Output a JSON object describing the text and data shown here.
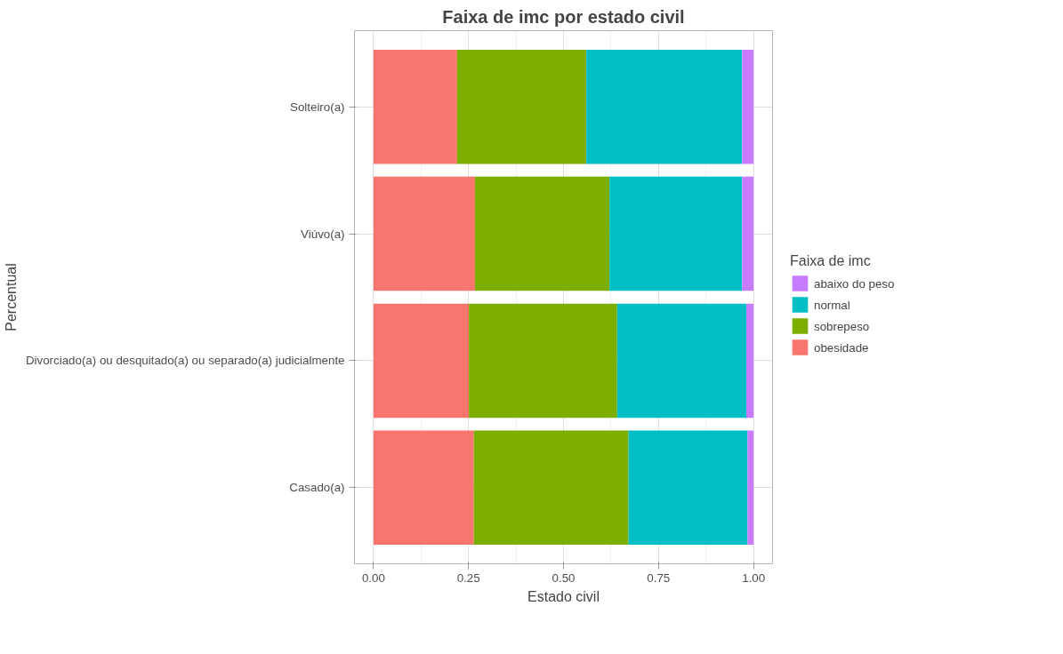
{
  "chart_data": {
    "type": "bar",
    "orientation": "horizontal",
    "stacked": true,
    "title": "Faixa de imc por estado civil",
    "xlabel": "Estado civil",
    "ylabel": "Percentual",
    "legend_title": "Faixa de imc",
    "categories": [
      "Solteiro(a)",
      "Viúvo(a)",
      "Divorciado(a) ou desquitado(a) ou separado(a) judicialmente",
      "Casado(a)"
    ],
    "series": [
      {
        "name": "obesidade",
        "color": "#f8766d",
        "values": [
          0.22,
          0.267,
          0.251,
          0.264
        ]
      },
      {
        "name": "sobrepeso",
        "color": "#7cae00",
        "values": [
          0.34,
          0.354,
          0.39,
          0.407
        ]
      },
      {
        "name": "normal",
        "color": "#00bfc4",
        "values": [
          0.41,
          0.349,
          0.34,
          0.313
        ]
      },
      {
        "name": "abaixo do peso",
        "color": "#c77cff",
        "values": [
          0.03,
          0.03,
          0.019,
          0.016
        ]
      }
    ],
    "xlim": [
      -0.05,
      1.05
    ],
    "xticks": [
      {
        "value": 0,
        "label": "0.00"
      },
      {
        "value": 0.25,
        "label": "0.25"
      },
      {
        "value": 0.5,
        "label": "0.50"
      },
      {
        "value": 0.75,
        "label": "0.75"
      },
      {
        "value": 1,
        "label": "1.00"
      }
    ],
    "grid": true,
    "legend": "right"
  }
}
